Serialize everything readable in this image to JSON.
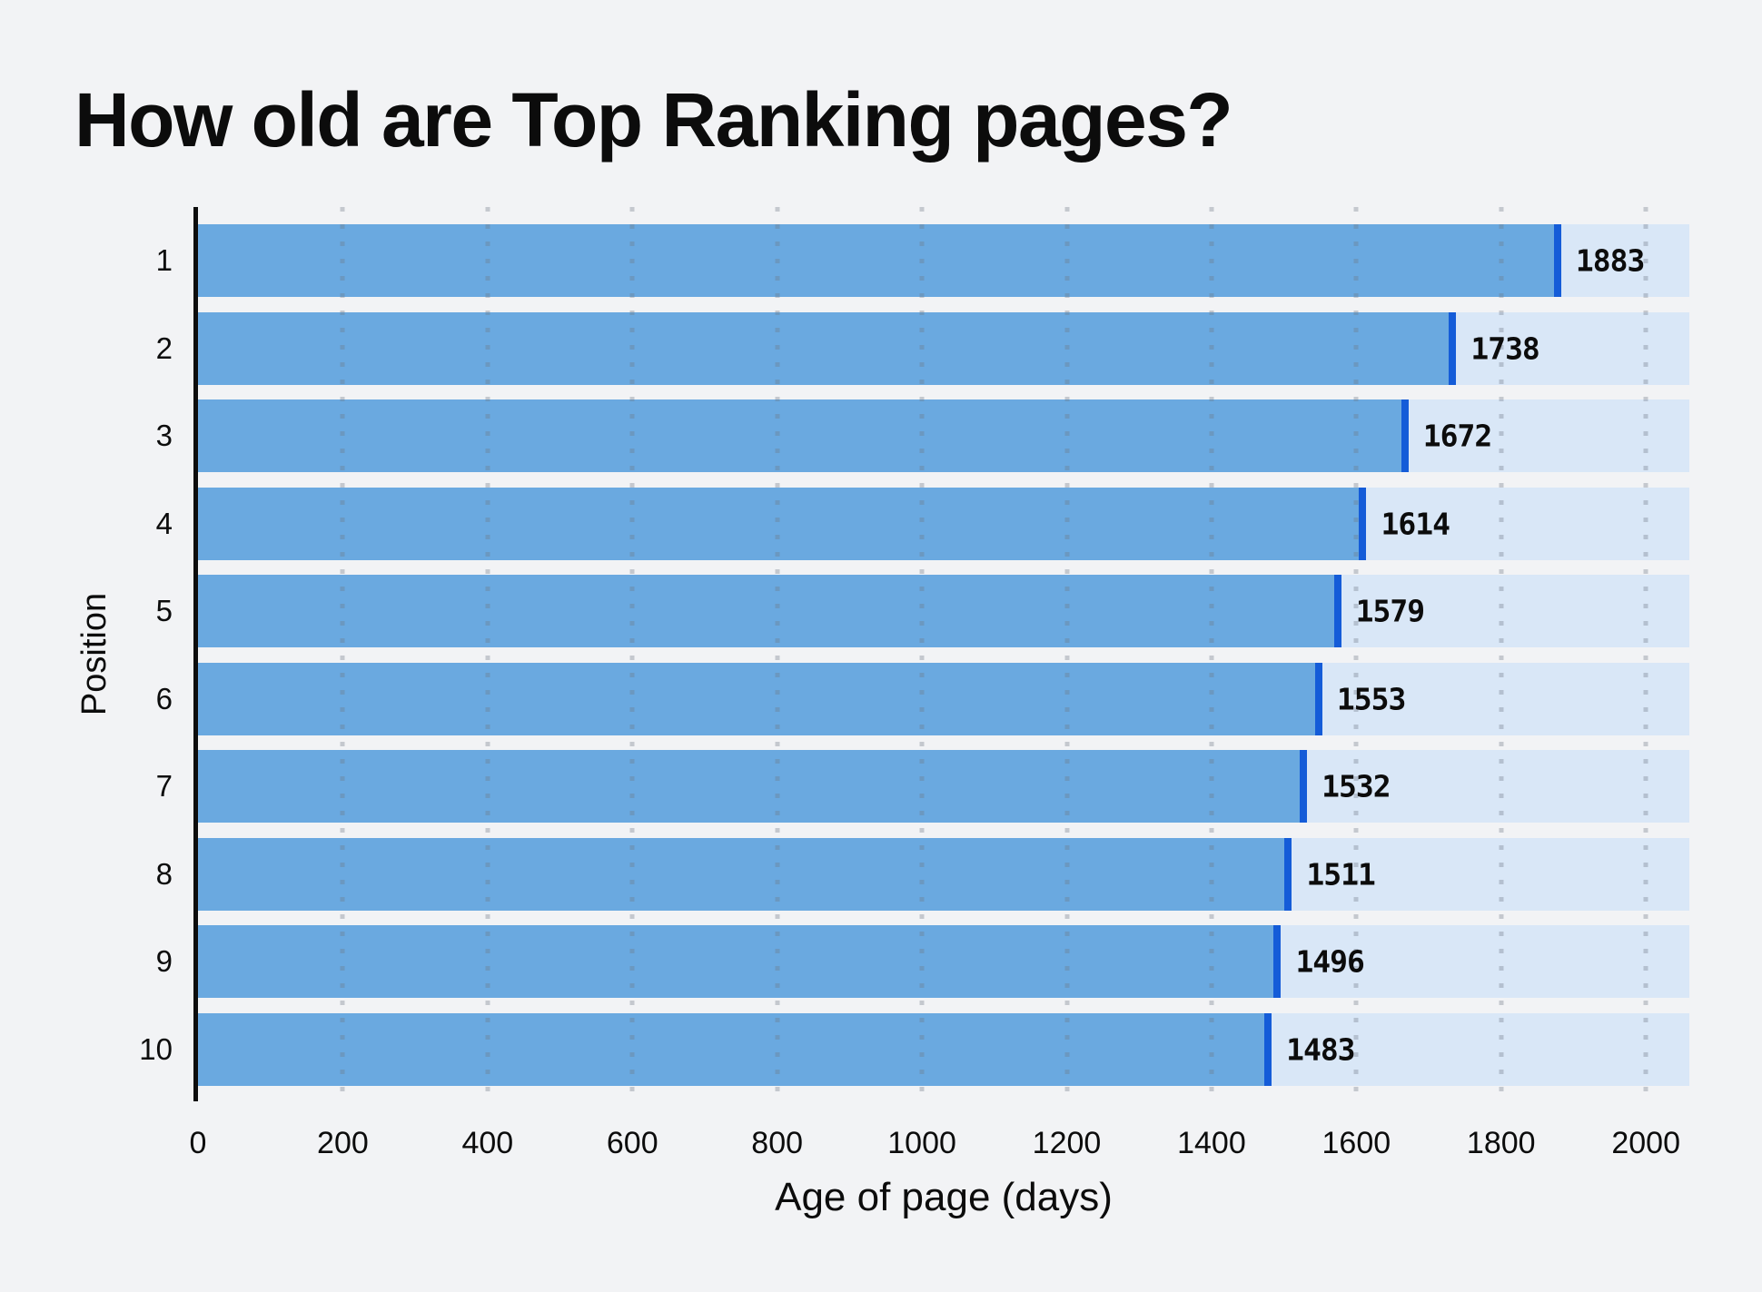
{
  "title": "How old are Top Ranking pages?",
  "chart_data": {
    "type": "bar",
    "orientation": "horizontal",
    "title": "How old are Top Ranking pages?",
    "categories": [
      "1",
      "2",
      "3",
      "4",
      "5",
      "6",
      "7",
      "8",
      "9",
      "10"
    ],
    "values": [
      1883,
      1738,
      1672,
      1614,
      1579,
      1553,
      1532,
      1511,
      1496,
      1483
    ],
    "xlabel": "Age of page (days)",
    "ylabel": "Position",
    "xticks": [
      0,
      200,
      400,
      600,
      800,
      1000,
      1200,
      1400,
      1600,
      1800,
      2000
    ],
    "xlim": [
      0,
      2060
    ],
    "grid": "vertical-dotted",
    "legend": "none",
    "value_labels_shown": true,
    "colors": {
      "background": "#f2f3f5",
      "bar": "#6aa9e0",
      "bar_edge": "#145cd8",
      "bar_track": "#d9e7f7",
      "axis_line": "#0d0d0d",
      "text": "#0c0c0c",
      "gridline_dot": "rgba(109,118,131,0.34)"
    }
  }
}
